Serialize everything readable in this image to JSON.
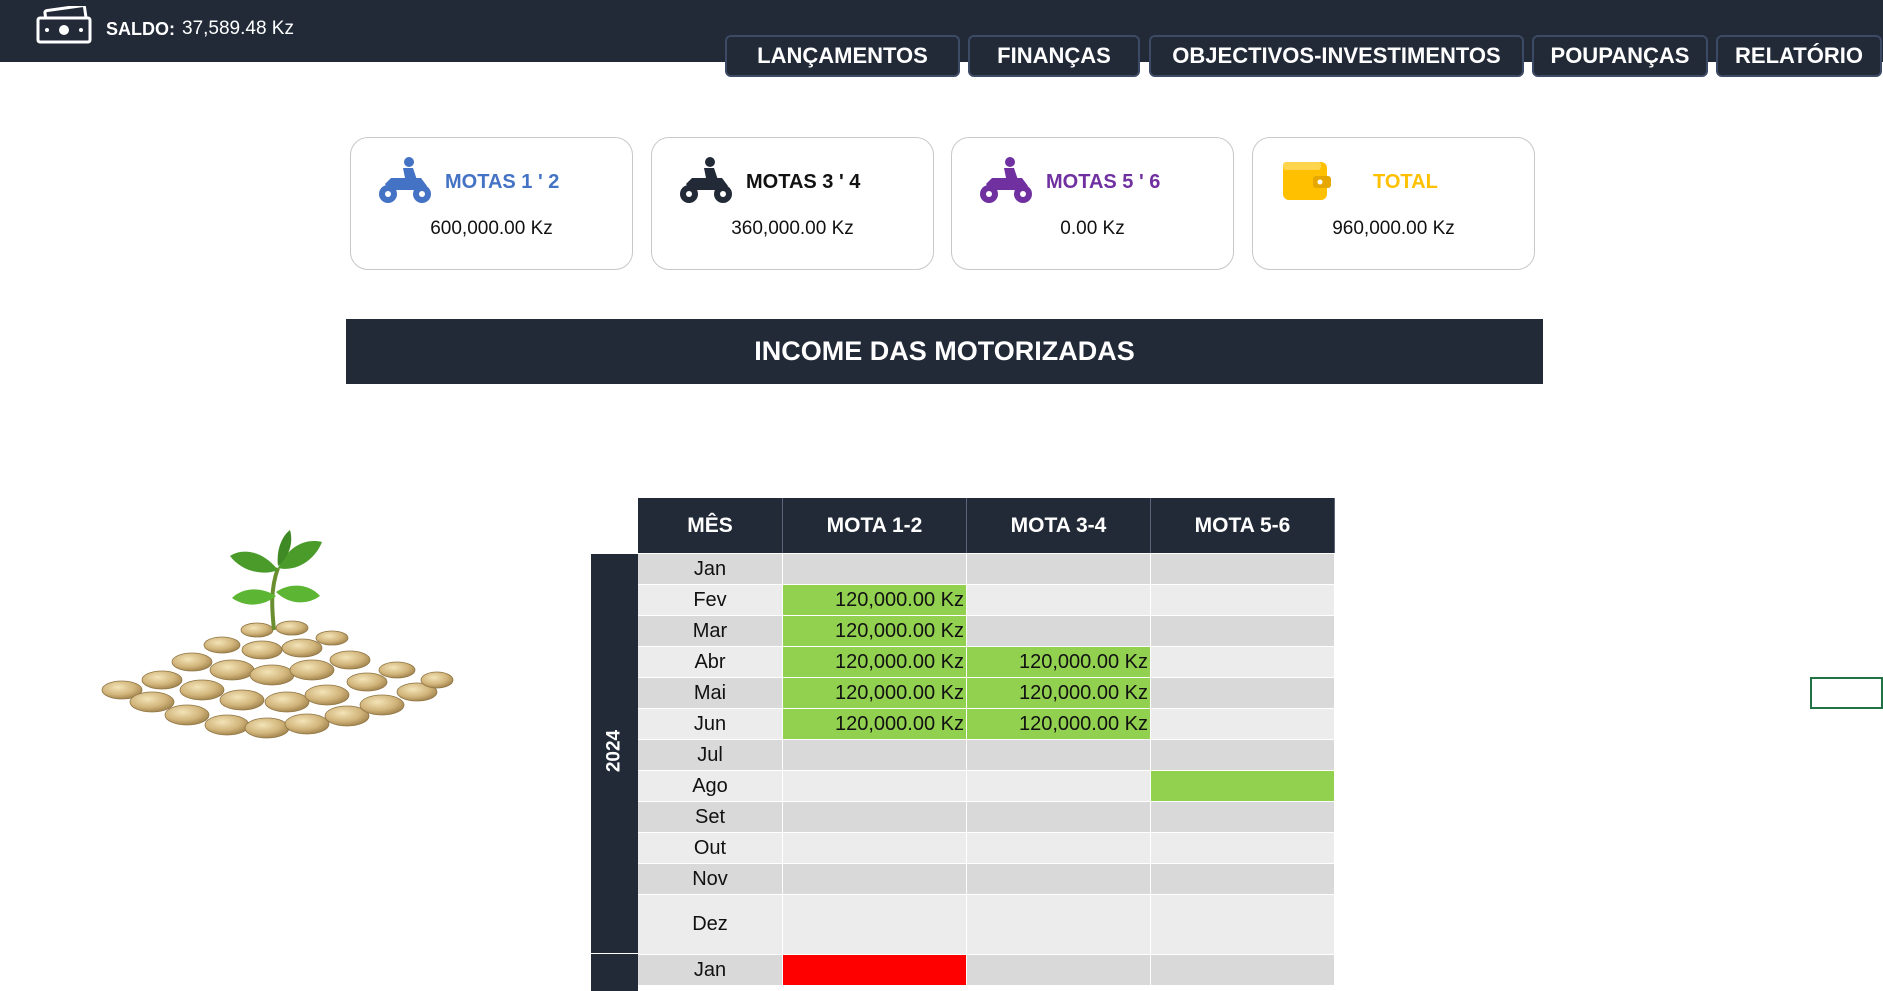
{
  "header": {
    "saldo_label": "SALDO:",
    "saldo_value": "37,589.48 Kz",
    "nav": [
      {
        "label": "LANÇAMENTOS"
      },
      {
        "label": "FINANÇAS"
      },
      {
        "label": "OBJECTIVOS-INVESTIMENTOS"
      },
      {
        "label": "POUPANÇAS"
      },
      {
        "label": "RELATÓRIO"
      }
    ]
  },
  "cards": [
    {
      "title": "MOTAS 1 ' 2",
      "value": "600,000.00 Kz",
      "color": "#4472c4",
      "icon": "motorcycle-icon"
    },
    {
      "title": "MOTAS 3 ' 4",
      "value": "360,000.00 Kz",
      "color": "#222a38",
      "icon": "motorcycle-icon"
    },
    {
      "title": "MOTAS 5 ' 6",
      "value": "0.00 Kz",
      "color": "#7030a0",
      "icon": "motorcycle-icon"
    },
    {
      "title": "TOTAL",
      "value": "960,000.00 Kz",
      "color": "#ffc000",
      "icon": "wallet-icon"
    }
  ],
  "banner": {
    "title": "INCOME DAS MOTORIZADAS"
  },
  "table": {
    "headers": [
      "MÊS",
      "MOTA 1-2",
      "MOTA 3-4",
      "MOTA 5-6"
    ],
    "year_label": "2024",
    "rows": [
      {
        "month": "Jan",
        "m12": "",
        "m34": "",
        "m56": "",
        "m12_state": "",
        "m34_state": "",
        "m56_state": ""
      },
      {
        "month": "Fev",
        "m12": "120,000.00 Kz",
        "m34": "",
        "m56": "",
        "m12_state": "green",
        "m34_state": "",
        "m56_state": ""
      },
      {
        "month": "Mar",
        "m12": "120,000.00 Kz",
        "m34": "",
        "m56": "",
        "m12_state": "green",
        "m34_state": "",
        "m56_state": ""
      },
      {
        "month": "Abr",
        "m12": "120,000.00 Kz",
        "m34": "120,000.00 Kz",
        "m56": "",
        "m12_state": "green",
        "m34_state": "green",
        "m56_state": ""
      },
      {
        "month": "Mai",
        "m12": "120,000.00 Kz",
        "m34": "120,000.00 Kz",
        "m56": "",
        "m12_state": "green",
        "m34_state": "green",
        "m56_state": ""
      },
      {
        "month": "Jun",
        "m12": "120,000.00 Kz",
        "m34": "120,000.00 Kz",
        "m56": "",
        "m12_state": "green",
        "m34_state": "green",
        "m56_state": ""
      },
      {
        "month": "Jul",
        "m12": "",
        "m34": "",
        "m56": "",
        "m12_state": "",
        "m34_state": "",
        "m56_state": ""
      },
      {
        "month": "Ago",
        "m12": "",
        "m34": "",
        "m56": "",
        "m12_state": "",
        "m34_state": "",
        "m56_state": "green"
      },
      {
        "month": "Set",
        "m12": "",
        "m34": "",
        "m56": "",
        "m12_state": "",
        "m34_state": "",
        "m56_state": ""
      },
      {
        "month": "Out",
        "m12": "",
        "m34": "",
        "m56": "",
        "m12_state": "",
        "m34_state": "",
        "m56_state": ""
      },
      {
        "month": "Nov",
        "m12": "",
        "m34": "",
        "m56": "",
        "m12_state": "",
        "m34_state": "",
        "m56_state": ""
      },
      {
        "month": "Dez",
        "m12": "",
        "m34": "",
        "m56": "",
        "m12_state": "",
        "m34_state": "",
        "m56_state": ""
      },
      {
        "month": "Jan",
        "m12": "",
        "m34": "",
        "m56": "",
        "m12_state": "red",
        "m34_state": "",
        "m56_state": ""
      }
    ]
  }
}
